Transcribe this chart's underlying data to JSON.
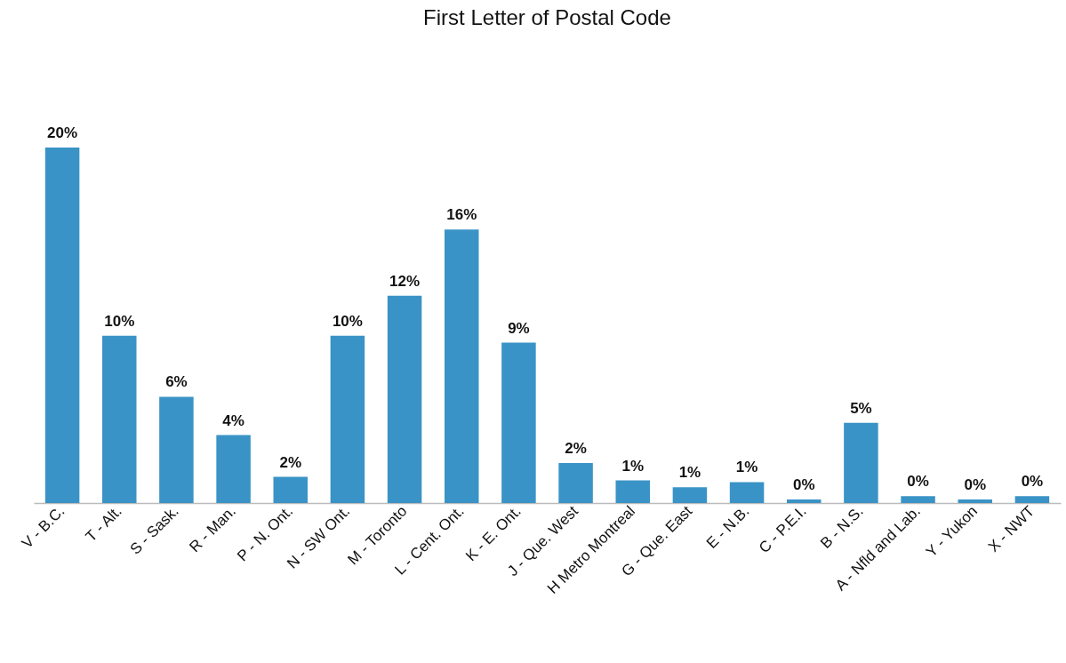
{
  "chart_data": {
    "type": "bar",
    "title": "First Letter of Postal Code",
    "categories": [
      "V - B.C.",
      "T - Alt.",
      "S - Sask.",
      "R - Man.",
      "P - N. Ont.",
      "N - SW Ont.",
      "M - Toronto",
      "L - Cent. Ont.",
      "K - E. Ont.",
      "J - Que. West",
      "H Metro Montreal",
      "G - Que. East",
      "E - N.B.",
      "C - P.E.I.",
      "B - N.S.",
      "A - Nfld and Lab.",
      "Y - Yukon",
      "X - NWT"
    ],
    "values": [
      20.4,
      9.6,
      6.1,
      3.9,
      1.5,
      9.6,
      11.9,
      15.7,
      9.2,
      2.3,
      1.3,
      0.9,
      1.2,
      0.2,
      4.6,
      0.4,
      0.2,
      0.4
    ],
    "value_labels": [
      "20%",
      "10%",
      "6%",
      "4%",
      "2%",
      "10%",
      "12%",
      "16%",
      "9%",
      "2%",
      "1%",
      "1%",
      "1%",
      "0%",
      "5%",
      "0%",
      "0%",
      "0%"
    ],
    "color": "#3a93c6"
  }
}
